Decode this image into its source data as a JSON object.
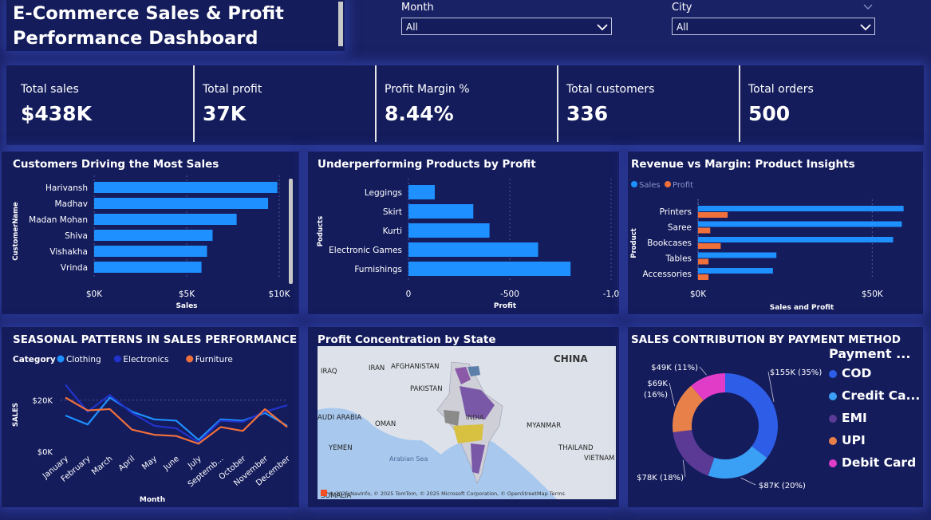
{
  "title": "E-Commerce Sales & Profit Performance Dashboard",
  "slicers": [
    {
      "label": "Month",
      "value": "All"
    },
    {
      "label": "City",
      "value": "All"
    }
  ],
  "kpis": [
    {
      "label": "Total sales",
      "value": "$438K"
    },
    {
      "label": "Total profit",
      "value": "37K"
    },
    {
      "label": "Profit Margin %",
      "value": "8.44%"
    },
    {
      "label": "Total customers",
      "value": "336"
    },
    {
      "label": "Total orders",
      "value": "500"
    }
  ],
  "colors": {
    "bar": "#1e90ff",
    "profit": "#f0703c",
    "electronics": "#2233cc",
    "clothing": "#1e90ff"
  },
  "panels": {
    "customers_title": "Customers Driving the Most Sales",
    "products_title": "Underperforming Products by Profit",
    "revenue_title": "Revenue vs Margin: Product Insights",
    "seasonal_title": "SEASONAL PATTERNS IN SALES PERFORMANCE",
    "map_title": "Profit Concentration by State",
    "payment_title": "SALES CONTRIBUTION BY PAYMENT METHOD"
  },
  "map": {
    "labels": [
      "IRAQ",
      "IRAN",
      "AFGHANISTAN",
      "PAKISTAN",
      "CHINA",
      "INDIA",
      "OMAN",
      "MYANMAR",
      "THAILAND",
      "VIETNAM",
      "YEMEN",
      "SOMALIA",
      "Arabian Sea",
      "AUDI ARABIA"
    ],
    "attribution": "© 2025 NavInfo, © 2025 TomTom, © 2025 Microsoft Corporation, © OpenStreetMap Terms"
  },
  "chart_data": [
    {
      "type": "bar",
      "title": "Customers Driving the Most Sales",
      "xlabel": "Sales",
      "ylabel": "CustomerName",
      "categories": [
        "Harivansh",
        "Madhav",
        "Madan Mohan",
        "Shiva",
        "Vishakha",
        "Vrinda"
      ],
      "values": [
        9900,
        9400,
        7700,
        6400,
        6100,
        5800
      ],
      "xlim": [
        0,
        10000
      ],
      "xticks": [
        "$0K",
        "$5K",
        "$10K"
      ]
    },
    {
      "type": "bar",
      "title": "Underperforming Products by Profit",
      "xlabel": "Profit",
      "ylabel": "Poducts",
      "categories": [
        "Leggings",
        "Skirt",
        "Kurti",
        "Electronic Games",
        "Furnishings"
      ],
      "values": [
        -130,
        -320,
        -400,
        -640,
        -800
      ],
      "xlim": [
        0,
        -1000
      ],
      "xticks": [
        "0",
        "-500",
        "-1,0"
      ]
    },
    {
      "type": "bar",
      "title": "Revenue vs Margin: Product Insights",
      "xlabel": "Sales and Profit",
      "ylabel": "Product",
      "categories": [
        "Printers",
        "Saree",
        "Bookcases",
        "Tables",
        "Accessories"
      ],
      "series": [
        {
          "name": "Sales",
          "values": [
            59000,
            58500,
            56000,
            22500,
            21500
          ]
        },
        {
          "name": "Profit",
          "values": [
            8500,
            3500,
            6500,
            3000,
            3000
          ]
        }
      ],
      "xlim": [
        0,
        60000
      ],
      "xticks": [
        "$0K",
        "$50K"
      ]
    },
    {
      "type": "line",
      "title": "SEASONAL PATTERNS IN SALES PERFORMANCE",
      "xlabel": "Month",
      "ylabel": "SALES",
      "legend_title": "Category",
      "categories": [
        "January",
        "February",
        "March",
        "April",
        "May",
        "June",
        "July",
        "Septemb...",
        "October",
        "November",
        "December"
      ],
      "series": [
        {
          "name": "Clothing",
          "values": [
            14000,
            10500,
            21000,
            15500,
            12500,
            12000,
            4500,
            12500,
            12000,
            15000,
            10000
          ]
        },
        {
          "name": "Electronics",
          "values": [
            26000,
            15500,
            22000,
            15000,
            10000,
            9000,
            3500,
            12000,
            11500,
            15500,
            18000
          ]
        },
        {
          "name": "Furniture",
          "values": [
            21000,
            16000,
            16500,
            8500,
            6500,
            6000,
            3000,
            9500,
            8000,
            16500,
            9500
          ]
        }
      ],
      "ylim": [
        0,
        28000
      ],
      "yticks": [
        "$0K",
        "$20K"
      ]
    },
    {
      "type": "pie",
      "title": "SALES CONTRIBUTION BY PAYMENT METHOD",
      "legend_title": "Payment ...",
      "categories": [
        "COD",
        "Credit Ca...",
        "EMI",
        "UPI",
        "Debit Card"
      ],
      "values": [
        155,
        87,
        78,
        69,
        49
      ],
      "labels": [
        "$155K (35%)",
        "$87K (20%)",
        "$78K (18%)",
        "$69K (16%)",
        "$49K (11%)"
      ],
      "colors": [
        "#2e5ee8",
        "#3aa0f5",
        "#5b3a96",
        "#e8804a",
        "#e03cc8"
      ]
    }
  ]
}
